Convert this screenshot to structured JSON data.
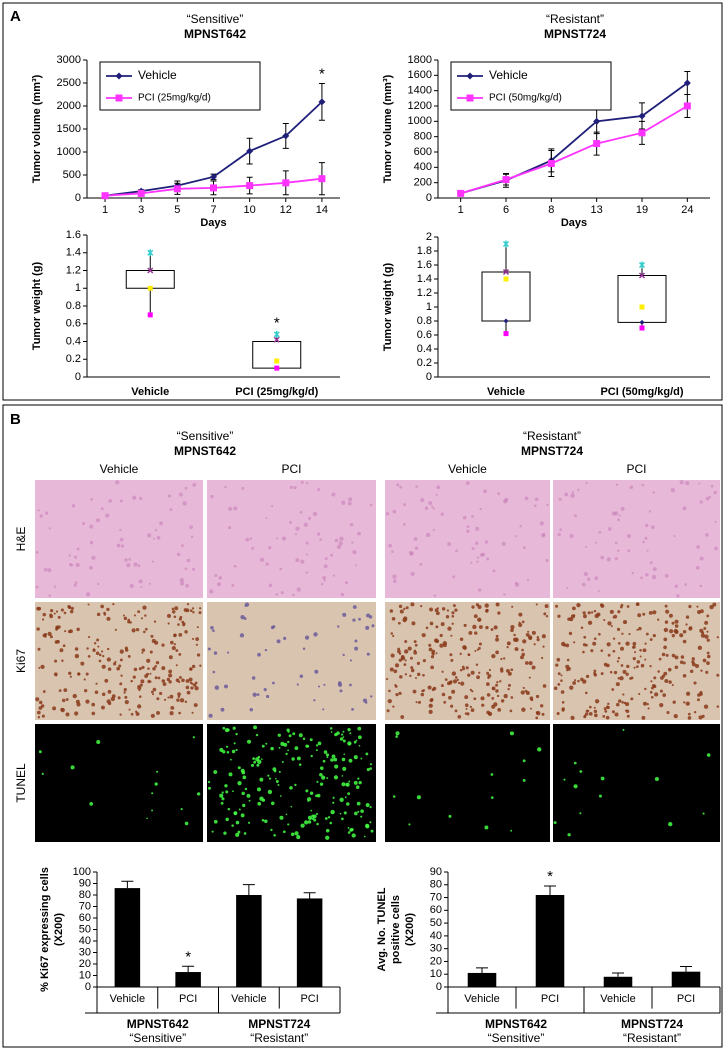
{
  "panel_labels": [
    "A",
    "B"
  ],
  "chart_data": [
    {
      "type": "line",
      "subtitle": "“Sensitive”",
      "title": "MPNST642",
      "xlabel": "Days",
      "ylabel": "Tumor volume (mm³)",
      "categories": [
        "1",
        "3",
        "5",
        "7",
        "10",
        "12",
        "14"
      ],
      "ylim": [
        0,
        3000
      ],
      "yticks": [
        0,
        500,
        1000,
        1500,
        2000,
        2500,
        3000
      ],
      "legend": "upper left",
      "series": [
        {
          "name": "Vehicle",
          "color": "#1f1f7a",
          "marker": "diamond",
          "values": [
            50,
            150,
            270,
            460,
            1020,
            1350,
            2090
          ],
          "errors": [
            0,
            30,
            100,
            60,
            280,
            270,
            400
          ]
        },
        {
          "name": "PCI (25mg/kg/d)",
          "color": "#ff33ff",
          "marker": "square",
          "values": [
            50,
            100,
            200,
            220,
            270,
            330,
            420
          ],
          "errors": [
            0,
            30,
            120,
            150,
            180,
            260,
            350
          ]
        }
      ],
      "annotations": [
        {
          "text": "*",
          "index": 6
        }
      ]
    },
    {
      "type": "line",
      "subtitle": "“Resistant”",
      "title": "MPNST724",
      "xlabel": "Days",
      "ylabel": "Tumor volume (mm³)",
      "categories": [
        "1",
        "6",
        "8",
        "13",
        "19",
        "24"
      ],
      "ylim": [
        0,
        1800
      ],
      "yticks": [
        0,
        200,
        400,
        600,
        800,
        1000,
        1200,
        1400,
        1600,
        1800
      ],
      "legend": "upper left",
      "series": [
        {
          "name": "Vehicle",
          "color": "#1f1f7a",
          "marker": "diamond",
          "values": [
            60,
            230,
            490,
            1000,
            1070,
            1500
          ],
          "errors": [
            20,
            90,
            150,
            160,
            170,
            150
          ]
        },
        {
          "name": "PCI (50mg/kg/d)",
          "color": "#ff33ff",
          "marker": "square",
          "values": [
            60,
            240,
            450,
            710,
            850,
            1200
          ],
          "errors": [
            20,
            70,
            170,
            150,
            150,
            150
          ]
        }
      ],
      "annotations": []
    },
    {
      "type": "box",
      "ylabel": "Tumor weight (g)",
      "categories": [
        "Vehicle",
        "PCI (25mg/kg/d)"
      ],
      "ylim": [
        0,
        1.6
      ],
      "yticks": [
        0,
        0.2,
        0.4,
        0.6,
        0.8,
        1,
        1.2,
        1.4,
        1.6
      ],
      "min": [
        0.7,
        0.1
      ],
      "q1": [
        1.0,
        0.1
      ],
      "q3": [
        1.2,
        0.4
      ],
      "max": [
        1.4,
        0.5
      ],
      "points": [
        {
          "color": "#ff00ff",
          "marker": "square",
          "values": [
            0.7,
            0.1
          ]
        },
        {
          "color": "#ffee00",
          "marker": "square",
          "values": [
            1.0,
            0.18
          ]
        },
        {
          "color": "#993399",
          "marker": "cross",
          "values": [
            1.2,
            0.42
          ]
        },
        {
          "color": "#33cccc",
          "marker": "star",
          "values": [
            1.4,
            0.48
          ]
        }
      ],
      "annotations": [
        {
          "text": "*",
          "index": 1
        }
      ]
    },
    {
      "type": "box",
      "ylabel": "Tumor weight (g)",
      "categories": [
        "Vehicle",
        "PCI (50mg/kg/d)"
      ],
      "ylim": [
        0,
        2
      ],
      "yticks": [
        0,
        0.2,
        0.4,
        0.6,
        0.8,
        1,
        1.2,
        1.4,
        1.6,
        1.8,
        2
      ],
      "min": [
        0.62,
        0.7
      ],
      "q1": [
        0.8,
        0.78
      ],
      "q3": [
        1.5,
        1.45
      ],
      "max": [
        1.9,
        1.6
      ],
      "points": [
        {
          "color": "#ff00ff",
          "marker": "square",
          "values": [
            0.62,
            0.7
          ]
        },
        {
          "color": "#1f1f7a",
          "marker": "diamond",
          "values": [
            0.8,
            0.78
          ]
        },
        {
          "color": "#ffee00",
          "marker": "square",
          "values": [
            1.4,
            1.0
          ]
        },
        {
          "color": "#993399",
          "marker": "cross",
          "values": [
            1.5,
            1.45
          ]
        },
        {
          "color": "#33cccc",
          "marker": "star",
          "values": [
            1.9,
            1.6
          ]
        }
      ],
      "annotations": []
    },
    {
      "type": "bar",
      "ylabel": [
        "% Ki67 expressing cells",
        "(X200)"
      ],
      "categories": [
        "Vehicle",
        "PCI",
        "Vehicle",
        "PCI"
      ],
      "values": [
        86,
        13,
        80,
        77
      ],
      "errors": [
        6,
        5,
        9,
        5
      ],
      "color": "#000000",
      "ylim": [
        0,
        100
      ],
      "yticks": [
        0,
        10,
        20,
        30,
        40,
        50,
        60,
        70,
        80,
        90,
        100
      ],
      "groups": [
        {
          "title": "MPNST642",
          "subtitle": "“Sensitive”"
        },
        {
          "title": "MPNST724",
          "subtitle": "“Resistant”"
        }
      ],
      "annotations": [
        {
          "text": "*",
          "index": 1
        }
      ]
    },
    {
      "type": "bar",
      "ylabel": [
        "Avg. No. TUNEL",
        "positive cells",
        "(X200)"
      ],
      "categories": [
        "Vehicle",
        "PCI",
        "Vehicle",
        "PCI"
      ],
      "values": [
        11,
        72,
        8,
        12
      ],
      "errors": [
        4,
        7,
        3,
        4
      ],
      "color": "#000000",
      "ylim": [
        0,
        90
      ],
      "yticks": [
        0,
        10,
        20,
        30,
        40,
        50,
        60,
        70,
        80,
        90
      ],
      "groups": [
        {
          "title": "MPNST642",
          "subtitle": "“Sensitive”"
        },
        {
          "title": "MPNST724",
          "subtitle": "“Resistant”"
        }
      ],
      "annotations": [
        {
          "text": "*",
          "index": 1
        }
      ]
    }
  ],
  "histology": {
    "groups": [
      {
        "subtitle": "“Sensitive”",
        "title": "MPNST642",
        "columns": [
          "Vehicle",
          "PCI"
        ]
      },
      {
        "subtitle": "“Resistant”",
        "title": "MPNST724",
        "columns": [
          "Vehicle",
          "PCI"
        ]
      }
    ],
    "rows": [
      "H&E",
      "Ki67",
      "TUNEL"
    ]
  }
}
